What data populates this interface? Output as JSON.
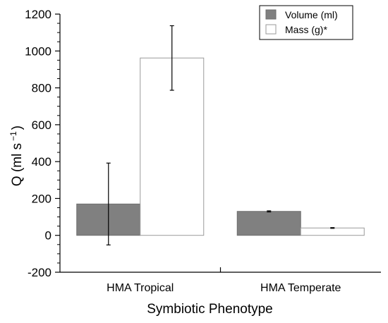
{
  "chart_data": {
    "type": "bar",
    "categories": [
      "HMA Tropical",
      "HMA Temperate"
    ],
    "series": [
      {
        "name": "Volume (ml)",
        "values": [
          170,
          130
        ],
        "error": [
          222,
          3
        ],
        "color": "#808080"
      },
      {
        "name": "Mass (g)*",
        "values": [
          962,
          40
        ],
        "error": [
          175,
          2
        ],
        "color": "#ffffff"
      }
    ],
    "xlabel": "Symbiotic Phenotype",
    "ylabel": "Q (ml s",
    "ylabel_exponent": "−1",
    "ylabel_close": ")",
    "ylim": [
      -200,
      1200
    ],
    "yticks": [
      "-200",
      "0",
      "200",
      "400",
      "600",
      "800",
      "1000",
      "1200"
    ],
    "legend_position": "top-right",
    "grid": false
  }
}
